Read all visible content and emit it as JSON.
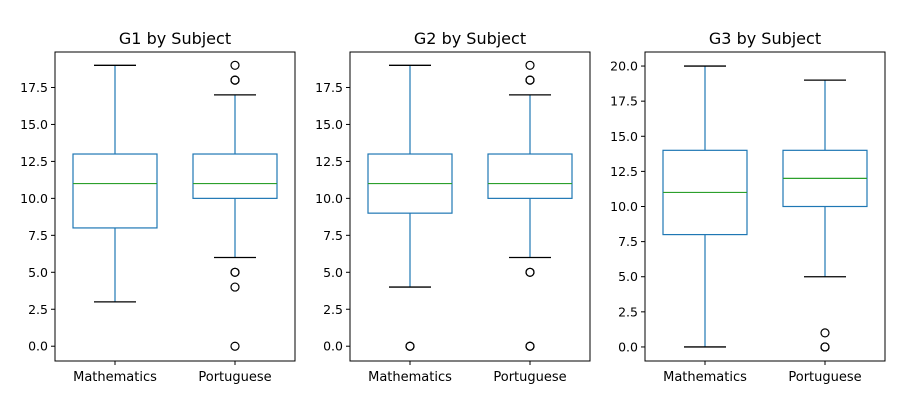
{
  "chart_data": [
    {
      "type": "box",
      "title": "G1 by Subject",
      "xlabel": "",
      "ylabel": "",
      "categories": [
        "Mathematics",
        "Portuguese"
      ],
      "ylim": [
        -1,
        19.9
      ],
      "yticks": [
        0.0,
        2.5,
        5.0,
        7.5,
        10.0,
        12.5,
        15.0,
        17.5
      ],
      "ytick_labels": [
        "0.0",
        "2.5",
        "5.0",
        "7.5",
        "10.0",
        "12.5",
        "15.0",
        "17.5"
      ],
      "boxes": [
        {
          "category": "Mathematics",
          "whisker_low": 3,
          "q1": 8,
          "median": 11,
          "q3": 13,
          "whisker_high": 19,
          "outliers": []
        },
        {
          "category": "Portuguese",
          "whisker_low": 6,
          "q1": 10,
          "median": 11,
          "q3": 13,
          "whisker_high": 17,
          "outliers": [
            0,
            4,
            5,
            5,
            18,
            18,
            19
          ]
        }
      ]
    },
    {
      "type": "box",
      "title": "G2 by Subject",
      "xlabel": "",
      "ylabel": "",
      "categories": [
        "Mathematics",
        "Portuguese"
      ],
      "ylim": [
        -1,
        19.9
      ],
      "yticks": [
        0.0,
        2.5,
        5.0,
        7.5,
        10.0,
        12.5,
        15.0,
        17.5
      ],
      "ytick_labels": [
        "0.0",
        "2.5",
        "5.0",
        "7.5",
        "10.0",
        "12.5",
        "15.0",
        "17.5"
      ],
      "boxes": [
        {
          "category": "Mathematics",
          "whisker_low": 4,
          "q1": 9,
          "median": 11,
          "q3": 13,
          "whisker_high": 19,
          "outliers": [
            0,
            0
          ]
        },
        {
          "category": "Portuguese",
          "whisker_low": 6,
          "q1": 10,
          "median": 11,
          "q3": 13,
          "whisker_high": 17,
          "outliers": [
            0,
            0,
            5,
            5,
            18,
            18,
            19
          ]
        }
      ]
    },
    {
      "type": "box",
      "title": "G3 by Subject",
      "xlabel": "",
      "ylabel": "",
      "categories": [
        "Mathematics",
        "Portuguese"
      ],
      "ylim": [
        -1,
        21
      ],
      "yticks": [
        0.0,
        2.5,
        5.0,
        7.5,
        10.0,
        12.5,
        15.0,
        17.5,
        20.0
      ],
      "ytick_labels": [
        "0.0",
        "2.5",
        "5.0",
        "7.5",
        "10.0",
        "12.5",
        "15.0",
        "17.5",
        "20.0"
      ],
      "boxes": [
        {
          "category": "Mathematics",
          "whisker_low": 0,
          "q1": 8,
          "median": 11,
          "q3": 14,
          "whisker_high": 20,
          "outliers": []
        },
        {
          "category": "Portuguese",
          "whisker_low": 5,
          "q1": 10,
          "median": 12,
          "q3": 14,
          "whisker_high": 19,
          "outliers": [
            0,
            0,
            1
          ]
        }
      ]
    }
  ],
  "colors": {
    "box": "#1f77b4",
    "median": "#2ca02c",
    "cap": "#000000",
    "flier": "#000000"
  }
}
